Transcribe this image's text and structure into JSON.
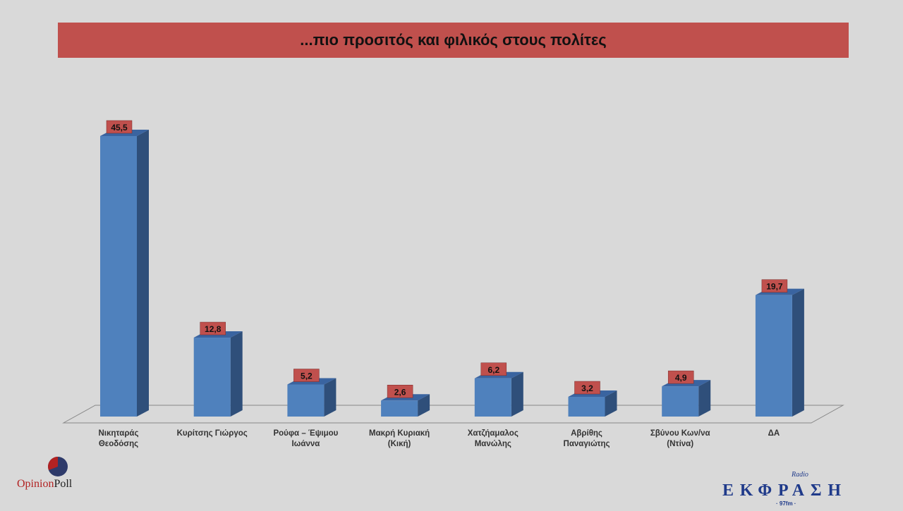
{
  "chart_data": {
    "type": "bar",
    "title": "...πιο προσιτός και φιλικός στους πολίτες",
    "categories": [
      "Νικηταράς\nΘεοδόσης",
      "Κυρίτσης Γιώργος",
      "Ρούφα – Έψιμου\nΙωάννα",
      "Μακρή Κυριακή\n(Κική)",
      "Χατζήαμαλος\nΜανώλης",
      "Αβρίθης\nΠαναγιώτης",
      "Σβύνου Κων/να\n(Ντίνα)",
      "ΔΑ"
    ],
    "values": [
      45.5,
      12.8,
      5.2,
      2.6,
      6.2,
      3.2,
      4.9,
      19.7
    ],
    "value_labels": [
      "45,5",
      "12,8",
      "5,2",
      "2,6",
      "6,2",
      "3,2",
      "4,9",
      "19,7"
    ],
    "ylim": [
      0,
      46
    ],
    "xlabel": "",
    "ylabel": "",
    "grid": false,
    "legend": "none"
  },
  "colors": {
    "bar": "#4f81bd",
    "bar_side": "#2f4f7a",
    "bar_top": "#3a64a0",
    "label_bg": "#c0504d",
    "title_bg": "#c0504d"
  },
  "logos": {
    "left": "OpinionPoll",
    "right": "Radio ΕΚΦΡΑΣΗ 97fm"
  }
}
